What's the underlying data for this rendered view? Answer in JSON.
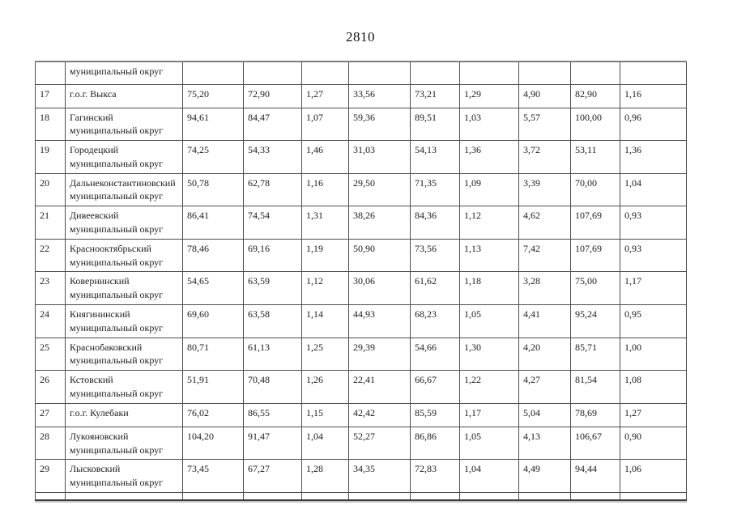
{
  "page": {
    "number": "2810"
  },
  "table": {
    "rows": [
      {
        "num": "",
        "name": "муниципальный округ",
        "values": [
          "",
          "",
          "",
          "",
          "",
          "",
          "",
          "",
          ""
        ]
      },
      {
        "num": "17",
        "name": "г.о.г. Выкса",
        "values": [
          "75,20",
          "72,90",
          "1,27",
          "33,56",
          "73,21",
          "1,29",
          "4,90",
          "82,90",
          "1,16"
        ]
      },
      {
        "num": "18",
        "name": "Гагинский муниципальный округ",
        "values": [
          "94,61",
          "84,47",
          "1,07",
          "59,36",
          "89,51",
          "1,03",
          "5,57",
          "100,00",
          "0,96"
        ]
      },
      {
        "num": "19",
        "name": "Городецкий муниципальный округ",
        "values": [
          "74,25",
          "54,33",
          "1,46",
          "31,03",
          "54,13",
          "1,36",
          "3,72",
          "53,11",
          "1,36"
        ]
      },
      {
        "num": "20",
        "name": "Дальнеконстантиновский муниципальный округ",
        "values": [
          "50,78",
          "62,78",
          "1,16",
          "29,50",
          "71,35",
          "1,09",
          "3,39",
          "70,00",
          "1,04"
        ]
      },
      {
        "num": "21",
        "name": "Дивеевский муниципальный округ",
        "values": [
          "86,41",
          "74,54",
          "1,31",
          "38,26",
          "84,36",
          "1,12",
          "4,62",
          "107,69",
          "0,93"
        ]
      },
      {
        "num": "22",
        "name": "Краснооктябрьский муниципальный округ",
        "values": [
          "78,46",
          "69,16",
          "1,19",
          "50,90",
          "73,56",
          "1,13",
          "7,42",
          "107,69",
          "0,93"
        ]
      },
      {
        "num": "23",
        "name": "Ковернинский муниципальный округ",
        "values": [
          "54,65",
          "63,59",
          "1,12",
          "30,06",
          "61,62",
          "1,18",
          "3,28",
          "75,00",
          "1,17"
        ]
      },
      {
        "num": "24",
        "name": "Княгининский муниципальный округ",
        "values": [
          "69,60",
          "63,58",
          "1,14",
          "44,93",
          "68,23",
          "1,05",
          "4,41",
          "95,24",
          "0,95"
        ]
      },
      {
        "num": "25",
        "name": "Краснобаковский муниципальный округ",
        "values": [
          "80,71",
          "61,13",
          "1,25",
          "29,39",
          "54,66",
          "1,30",
          "4,20",
          "85,71",
          "1,00"
        ]
      },
      {
        "num": "26",
        "name": "Кстовский муниципальный округ",
        "values": [
          "51,91",
          "70,48",
          "1,26",
          "22,41",
          "66,67",
          "1,22",
          "4,27",
          "81,54",
          "1,08"
        ]
      },
      {
        "num": "27",
        "name": "г.о.г. Кулебаки",
        "values": [
          "76,02",
          "86,55",
          "1,15",
          "42,42",
          "85,59",
          "1,17",
          "5,04",
          "78,69",
          "1,27"
        ]
      },
      {
        "num": "28",
        "name": "Лукояновский муниципальный округ",
        "values": [
          "104,20",
          "91,47",
          "1,04",
          "52,27",
          "86,86",
          "1,05",
          "4,13",
          "106,67",
          "0,90"
        ]
      },
      {
        "num": "29",
        "name": "Лысковский муниципальный округ",
        "values": [
          "73,45",
          "67,27",
          "1,28",
          "34,35",
          "72,83",
          "1,04",
          "4,49",
          "94,44",
          "1,06"
        ]
      },
      {
        "num": "",
        "name": "",
        "values": [
          "",
          "",
          "",
          "",
          "",
          "",
          "",
          "",
          ""
        ]
      }
    ]
  }
}
